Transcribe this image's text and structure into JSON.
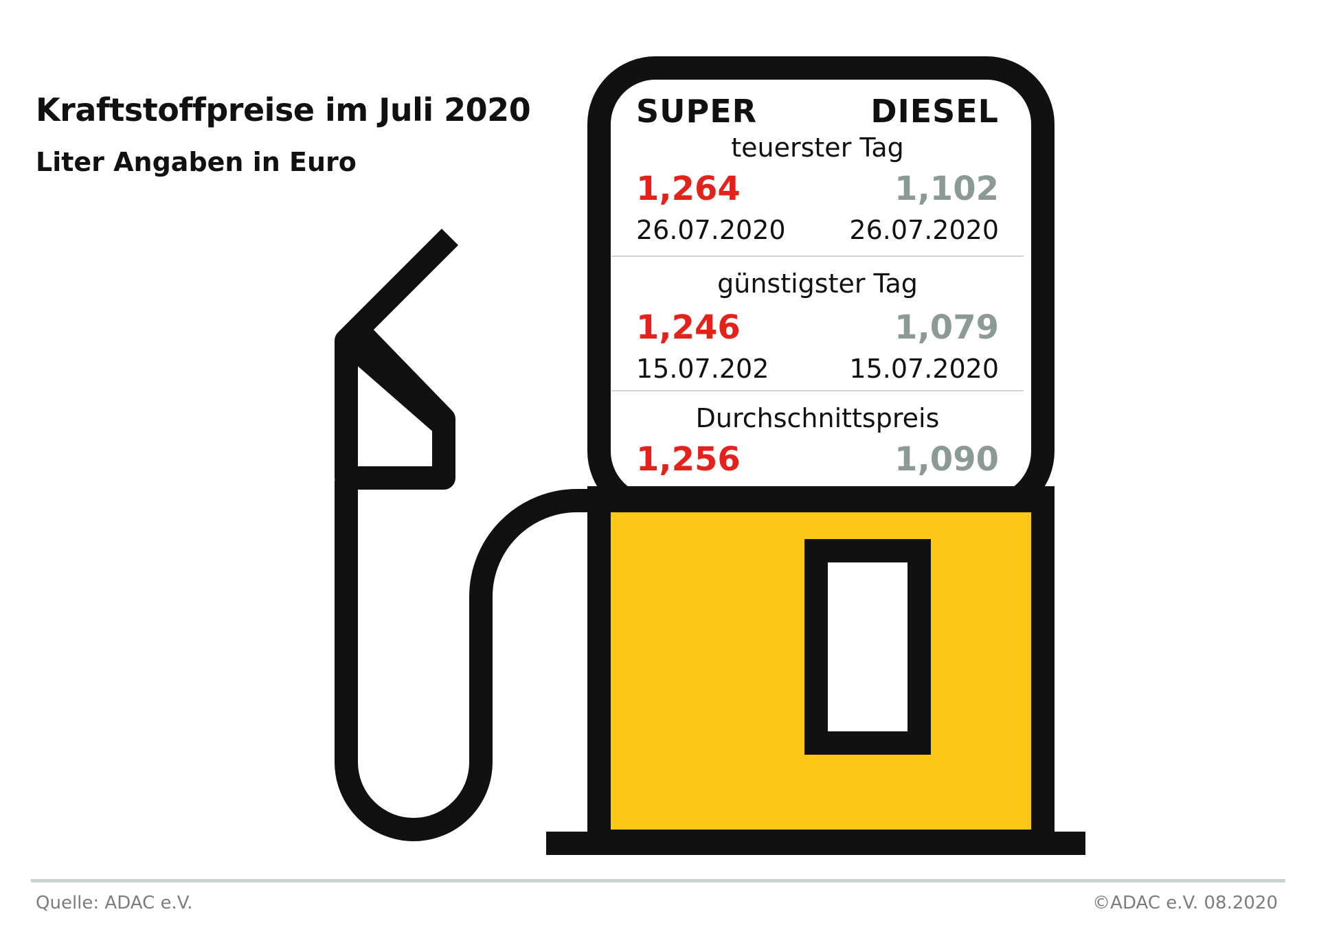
{
  "title": "Kraftstoffpreise im Juli 2020",
  "subtitle": "Liter Angaben in Euro",
  "columns": {
    "super": "SUPER",
    "diesel": "DIESEL"
  },
  "sections": [
    {
      "label": "teuerster Tag",
      "super_value": "1,264",
      "super_date": "26.07.2020",
      "diesel_value": "1,102",
      "diesel_date": "26.07.2020"
    },
    {
      "label": "günstigster Tag",
      "super_value": "1,246",
      "super_date": "15.07.202",
      "diesel_value": "1,079",
      "diesel_date": "15.07.2020"
    },
    {
      "label": "Durchschnittspreis",
      "super_value": "1,256",
      "diesel_value": "1,090"
    }
  ],
  "footer": {
    "source": "Quelle: ADAC e.V.",
    "copyright": "©ADAC e.V.  08.2020"
  },
  "colors": {
    "super": "#e3231b",
    "diesel": "#8c9a97",
    "pump_yellow": "#fdc815",
    "outline": "#111111"
  }
}
